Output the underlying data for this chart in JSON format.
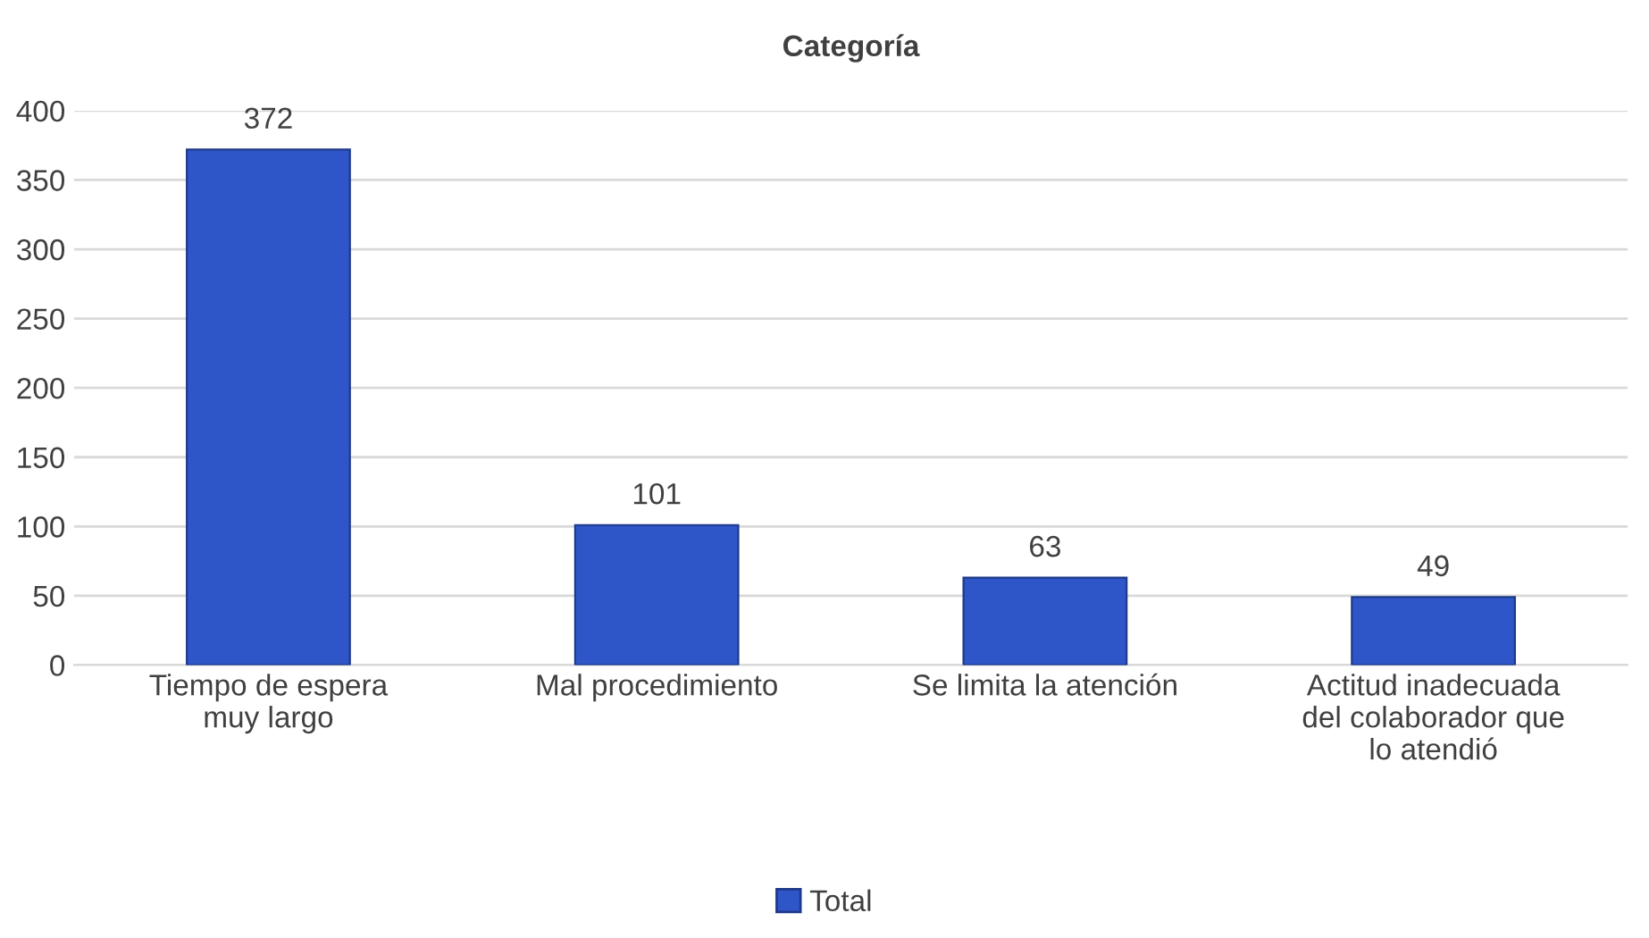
{
  "chart_data": {
    "type": "bar",
    "title": "Categoría",
    "categories": [
      "Tiempo de espera\nmuy largo",
      "Mal procedimiento",
      "Se limita la atención",
      "Actitud inadecuada\ndel colaborador que\nlo atendió"
    ],
    "series": [
      {
        "name": "Total",
        "color": "#2f56c8",
        "values": [
          372,
          101,
          63,
          49
        ]
      }
    ],
    "ylim": [
      0,
      400
    ],
    "yticks": [
      0,
      50,
      100,
      150,
      200,
      250,
      300,
      350,
      400
    ],
    "grid": "y",
    "legend": "bottom",
    "data_labels": true
  }
}
